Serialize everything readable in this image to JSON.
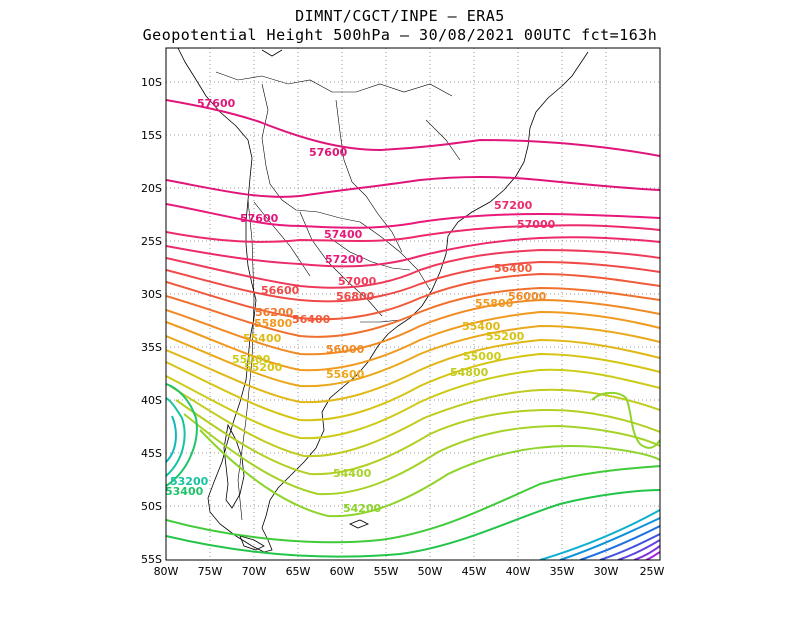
{
  "header": {
    "line1": "DIMNT/CGCT/INPE –  ERA5",
    "line2": "Geopotential Height 500hPa –  30/08/2021 00UTC fct=163h"
  },
  "map": {
    "region": "South America (south)",
    "lon_range": [
      -80,
      -25
    ],
    "lat_range": [
      -55,
      -7
    ],
    "grid": "dotted",
    "units": "gpm",
    "x_ticks": [
      "80W",
      "75W",
      "70W",
      "65W",
      "60W",
      "55W",
      "50W",
      "45W",
      "40W",
      "35W",
      "30W",
      "25W"
    ],
    "y_ticks": [
      "10S",
      "15S",
      "20S",
      "25S",
      "30S",
      "35S",
      "40S",
      "45S",
      "50S",
      "55S"
    ],
    "contour_labels": [
      {
        "text": "57600",
        "color": "#e0157a"
      },
      {
        "text": "57600",
        "color": "#e0157a"
      },
      {
        "text": "57600",
        "color": "#e0157a"
      },
      {
        "text": "57400",
        "color": "#e8197a"
      },
      {
        "text": "57200",
        "color": "#e8197a"
      },
      {
        "text": "57200",
        "color": "#ec2a6a"
      },
      {
        "text": "57000",
        "color": "#ec2a6a"
      },
      {
        "text": "57000",
        "color": "#ee3a5a"
      },
      {
        "text": "56800",
        "color": "#ef4a48"
      },
      {
        "text": "56600",
        "color": "#ef4a48"
      },
      {
        "text": "56400",
        "color": "#f05a3a"
      },
      {
        "text": "56400",
        "color": "#f05a3a"
      },
      {
        "text": "56200",
        "color": "#f0782c"
      },
      {
        "text": "56000",
        "color": "#f08a24"
      },
      {
        "text": "56000",
        "color": "#f08a24"
      },
      {
        "text": "55800",
        "color": "#f09a20"
      },
      {
        "text": "55800",
        "color": "#f09a20"
      },
      {
        "text": "55600",
        "color": "#eaa81c"
      },
      {
        "text": "55400",
        "color": "#e0b818"
      },
      {
        "text": "55400",
        "color": "#e0b818"
      },
      {
        "text": "55200",
        "color": "#d6c414"
      },
      {
        "text": "55200",
        "color": "#d6c414"
      },
      {
        "text": "55000",
        "color": "#cccc18"
      },
      {
        "text": "55000",
        "color": "#cccc18"
      },
      {
        "text": "54800",
        "color": "#c0cc20"
      },
      {
        "text": "54400",
        "color": "#a6d228"
      },
      {
        "text": "54200",
        "color": "#8ed42c"
      },
      {
        "text": "53400",
        "color": "#20c46a"
      },
      {
        "text": "53200",
        "color": "#14c4a0"
      }
    ]
  }
}
